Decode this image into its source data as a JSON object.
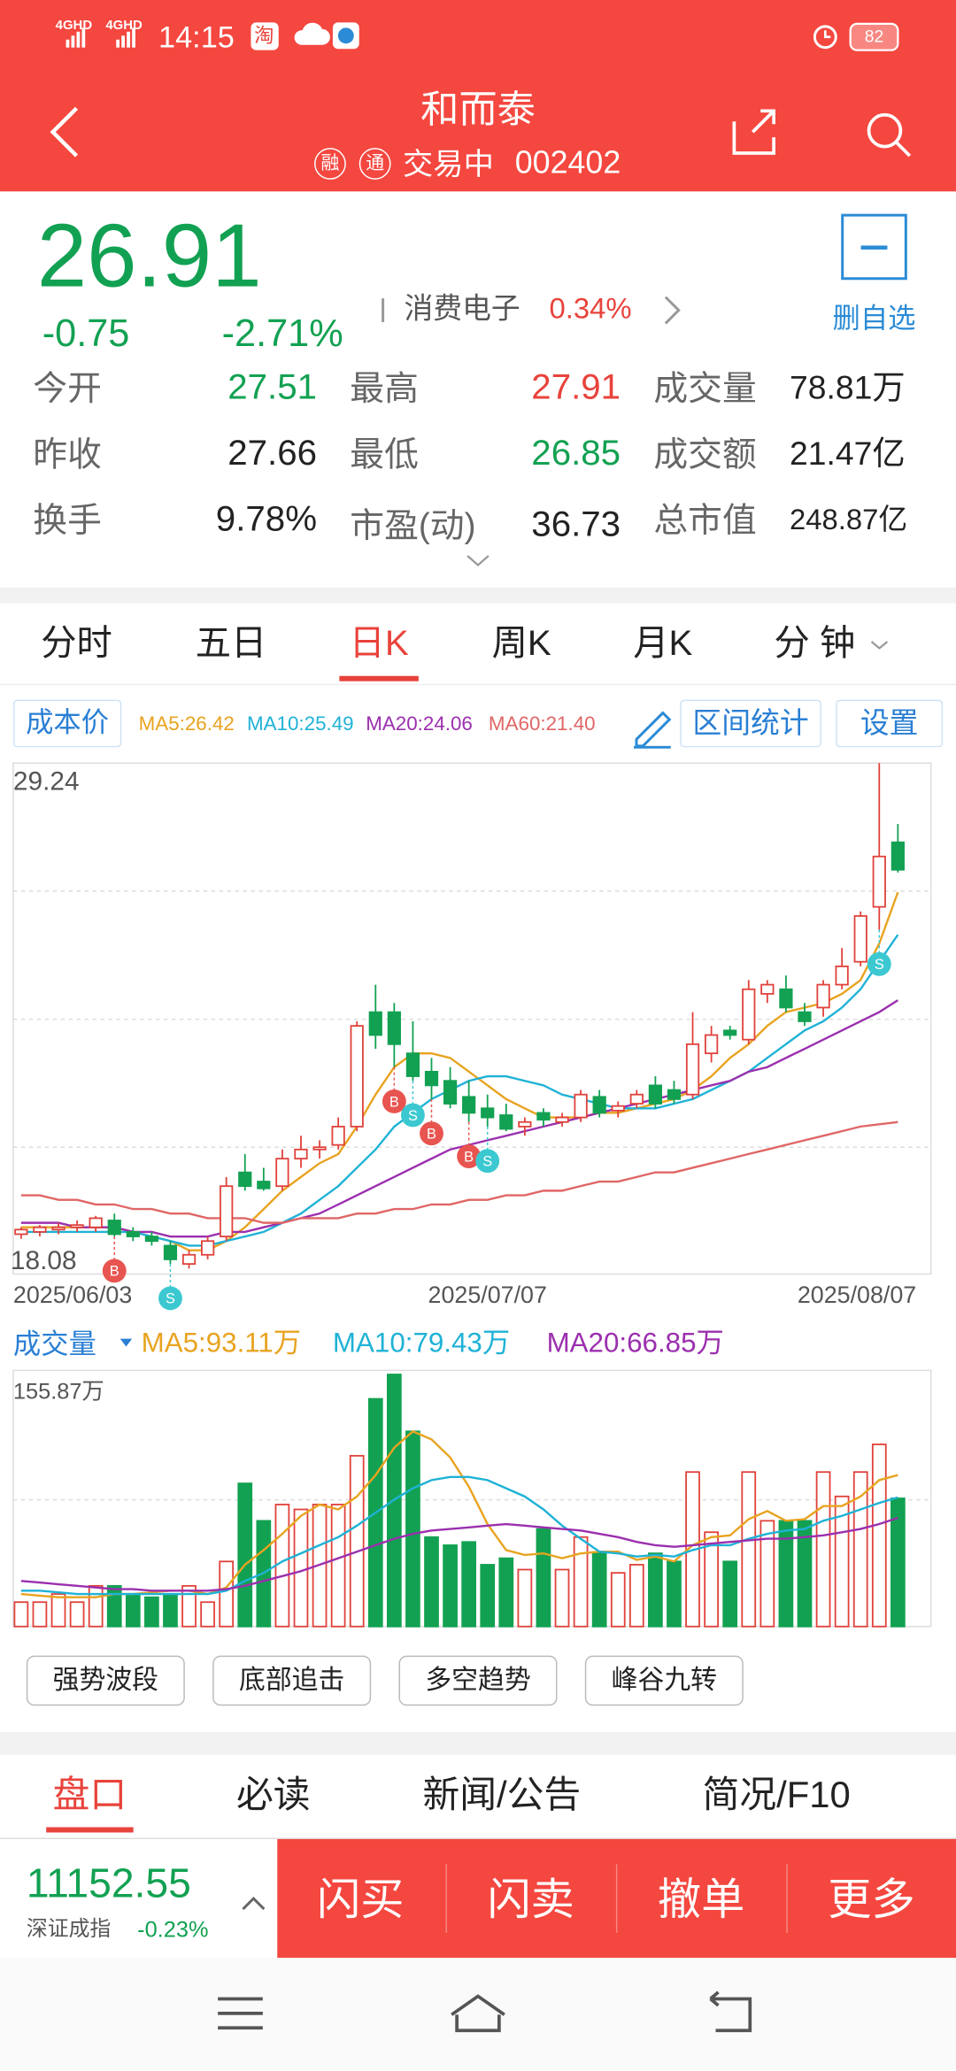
{
  "status_bar": {
    "network": [
      "4GHD",
      "4GHD"
    ],
    "time": "14:15",
    "notification_icons": [
      "淘"
    ],
    "battery": "82"
  },
  "header": {
    "title": "和而泰",
    "badges": [
      "融",
      "通"
    ],
    "status": "交易中",
    "code": "002402"
  },
  "quote": {
    "price": "26.91",
    "change": "-0.75",
    "change_pct": "-2.71%",
    "sector": "消费电子",
    "sector_change": "0.34%",
    "watchlist": "删自选"
  },
  "stats": [
    [
      {
        "label": "今开",
        "value": "27.51",
        "color": "#12a152"
      },
      {
        "label": "最高",
        "value": "27.91",
        "color": "#e8433b"
      },
      {
        "label": "成交量",
        "value": "78.81万",
        "color": "#222222"
      }
    ],
    [
      {
        "label": "昨收",
        "value": "27.66",
        "color": "#222222"
      },
      {
        "label": "最低",
        "value": "26.85",
        "color": "#12a152"
      },
      {
        "label": "成交额",
        "value": "21.47亿",
        "color": "#222222"
      }
    ],
    [
      {
        "label": "换手",
        "value": "9.78%",
        "color": "#222222"
      },
      {
        "label": "市盈(动)",
        "value": "36.73",
        "color": "#222222"
      },
      {
        "label": "总市值",
        "value": "248.87亿",
        "color": "#222222"
      }
    ]
  ],
  "tabs": [
    {
      "label": "分时"
    },
    {
      "label": "五日"
    },
    {
      "label": "日K",
      "selected": true
    },
    {
      "label": "周K"
    },
    {
      "label": "月K"
    },
    {
      "label": "分 钟"
    }
  ],
  "kline": {
    "cost_button": "成本价",
    "tools": [
      "区间统计",
      "设置"
    ],
    "ylim": [
      18.08,
      29.24
    ],
    "up_color": "#e0413a",
    "down_color": "#12a152",
    "ma": [
      {
        "label": "MA5:26.42",
        "color": "#e8a320",
        "values": [
          19.1,
          19.1,
          19.1,
          19.1,
          19.1,
          19.1,
          19.0,
          18.9,
          18.8,
          18.6,
          18.6,
          18.8,
          19.1,
          19.5,
          19.9,
          20.2,
          20.5,
          20.7,
          21.3,
          22.0,
          22.6,
          22.9,
          22.9,
          22.8,
          22.5,
          22.2,
          21.9,
          21.7,
          21.5,
          21.5,
          21.5,
          21.6,
          21.6,
          21.7,
          21.8,
          21.9,
          22.1,
          22.4,
          22.8,
          23.1,
          23.5,
          23.8,
          23.9,
          24.0,
          24.2,
          24.5,
          25.3,
          26.42
        ]
      },
      {
        "label": "MA10:25.49",
        "color": "#1fb2d6",
        "values": [
          19.0,
          19.0,
          19.0,
          19.0,
          19.0,
          19.0,
          19.0,
          18.9,
          18.8,
          18.7,
          18.7,
          18.8,
          18.9,
          19.0,
          19.2,
          19.4,
          19.7,
          20.0,
          20.4,
          20.8,
          21.3,
          21.6,
          21.9,
          22.1,
          22.3,
          22.4,
          22.4,
          22.3,
          22.2,
          22.0,
          21.9,
          21.8,
          21.7,
          21.7,
          21.7,
          21.8,
          21.9,
          22.1,
          22.3,
          22.5,
          22.8,
          23.1,
          23.4,
          23.6,
          23.9,
          24.3,
          24.9,
          25.49
        ]
      },
      {
        "label": "MA20:24.06",
        "color": "#9b2fae",
        "values": [
          19.2,
          19.2,
          19.2,
          19.1,
          19.1,
          19.1,
          19.0,
          19.0,
          18.9,
          18.9,
          18.9,
          19.0,
          19.0,
          19.1,
          19.2,
          19.3,
          19.4,
          19.6,
          19.8,
          20.0,
          20.2,
          20.4,
          20.6,
          20.8,
          20.9,
          21.0,
          21.1,
          21.2,
          21.3,
          21.4,
          21.5,
          21.6,
          21.7,
          21.8,
          21.9,
          22.0,
          22.1,
          22.2,
          22.3,
          22.5,
          22.6,
          22.8,
          23.0,
          23.2,
          23.4,
          23.6,
          23.8,
          24.06
        ]
      },
      {
        "label": "MA60:21.40",
        "color": "#e06666",
        "values": [
          19.8,
          19.8,
          19.7,
          19.7,
          19.6,
          19.6,
          19.5,
          19.5,
          19.4,
          19.4,
          19.3,
          19.3,
          19.3,
          19.2,
          19.2,
          19.3,
          19.3,
          19.3,
          19.4,
          19.4,
          19.5,
          19.5,
          19.6,
          19.6,
          19.7,
          19.7,
          19.8,
          19.8,
          19.9,
          19.9,
          20.0,
          20.1,
          20.1,
          20.2,
          20.3,
          20.3,
          20.4,
          20.5,
          20.6,
          20.7,
          20.8,
          20.9,
          21.0,
          21.1,
          21.2,
          21.3,
          21.35,
          21.4
        ]
      }
    ],
    "candles": [
      {
        "o": 18.95,
        "h": 19.1,
        "l": 18.85,
        "c": 19.05,
        "date": "2025/06/03"
      },
      {
        "o": 19.0,
        "h": 19.15,
        "l": 18.9,
        "c": 19.1
      },
      {
        "o": 19.05,
        "h": 19.2,
        "l": 18.95,
        "c": 19.1
      },
      {
        "o": 19.1,
        "h": 19.25,
        "l": 19.0,
        "c": 19.15
      },
      {
        "o": 19.1,
        "h": 19.35,
        "l": 19.0,
        "c": 19.3
      },
      {
        "o": 19.25,
        "h": 19.4,
        "l": 18.9,
        "c": 18.95,
        "signal": "B"
      },
      {
        "o": 19.0,
        "h": 19.1,
        "l": 18.8,
        "c": 18.9
      },
      {
        "o": 18.9,
        "h": 19.0,
        "l": 18.7,
        "c": 18.8
      },
      {
        "o": 18.7,
        "h": 18.8,
        "l": 18.3,
        "c": 18.4,
        "signal": "S"
      },
      {
        "o": 18.3,
        "h": 18.6,
        "l": 18.2,
        "c": 18.5
      },
      {
        "o": 18.5,
        "h": 18.9,
        "l": 18.4,
        "c": 18.8
      },
      {
        "o": 18.9,
        "h": 20.2,
        "l": 18.8,
        "c": 20.0
      },
      {
        "o": 20.3,
        "h": 20.7,
        "l": 19.9,
        "c": 20.0
      },
      {
        "o": 20.1,
        "h": 20.4,
        "l": 19.9,
        "c": 19.95
      },
      {
        "o": 20.0,
        "h": 20.8,
        "l": 19.9,
        "c": 20.6
      },
      {
        "o": 20.6,
        "h": 21.1,
        "l": 20.4,
        "c": 20.8
      },
      {
        "o": 20.8,
        "h": 21.0,
        "l": 20.6,
        "c": 20.85
      },
      {
        "o": 20.9,
        "h": 21.5,
        "l": 20.8,
        "c": 21.3
      },
      {
        "o": 21.3,
        "h": 23.6,
        "l": 21.2,
        "c": 23.5
      },
      {
        "o": 23.8,
        "h": 24.4,
        "l": 23.0,
        "c": 23.3
      },
      {
        "o": 23.8,
        "h": 24.0,
        "l": 22.6,
        "c": 23.1,
        "signal": "B"
      },
      {
        "o": 22.9,
        "h": 23.6,
        "l": 22.3,
        "c": 22.4,
        "signal": "S"
      },
      {
        "o": 22.5,
        "h": 22.8,
        "l": 21.9,
        "c": 22.2,
        "signal": "B"
      },
      {
        "o": 22.3,
        "h": 22.6,
        "l": 21.7,
        "c": 21.8
      },
      {
        "o": 21.95,
        "h": 22.3,
        "l": 21.4,
        "c": 21.6,
        "signal": "B"
      },
      {
        "o": 21.7,
        "h": 22.0,
        "l": 21.3,
        "c": 21.5,
        "signal": "S",
        "date": "2025/07/07"
      },
      {
        "o": 21.55,
        "h": 21.8,
        "l": 21.2,
        "c": 21.25
      },
      {
        "o": 21.3,
        "h": 21.5,
        "l": 21.1,
        "c": 21.4
      },
      {
        "o": 21.6,
        "h": 21.7,
        "l": 21.3,
        "c": 21.45
      },
      {
        "o": 21.4,
        "h": 21.6,
        "l": 21.3,
        "c": 21.5
      },
      {
        "o": 21.5,
        "h": 22.1,
        "l": 21.4,
        "c": 22.0
      },
      {
        "o": 21.95,
        "h": 22.1,
        "l": 21.5,
        "c": 21.6
      },
      {
        "o": 21.65,
        "h": 21.85,
        "l": 21.5,
        "c": 21.75
      },
      {
        "o": 21.8,
        "h": 22.1,
        "l": 21.7,
        "c": 22.0
      },
      {
        "o": 22.2,
        "h": 22.4,
        "l": 21.7,
        "c": 21.8
      },
      {
        "o": 22.1,
        "h": 22.3,
        "l": 21.8,
        "c": 21.9
      },
      {
        "o": 22.0,
        "h": 23.8,
        "l": 21.9,
        "c": 23.1
      },
      {
        "o": 22.9,
        "h": 23.5,
        "l": 22.7,
        "c": 23.3
      },
      {
        "o": 23.4,
        "h": 23.5,
        "l": 23.2,
        "c": 23.3
      },
      {
        "o": 23.2,
        "h": 24.5,
        "l": 23.1,
        "c": 24.3
      },
      {
        "o": 24.2,
        "h": 24.5,
        "l": 24.0,
        "c": 24.4
      },
      {
        "o": 24.3,
        "h": 24.6,
        "l": 23.8,
        "c": 23.9
      },
      {
        "o": 23.8,
        "h": 24.0,
        "l": 23.5,
        "c": 23.6
      },
      {
        "o": 23.9,
        "h": 24.5,
        "l": 23.7,
        "c": 24.4
      },
      {
        "o": 24.4,
        "h": 25.2,
        "l": 24.3,
        "c": 24.8
      },
      {
        "o": 24.9,
        "h": 26.0,
        "l": 24.8,
        "c": 25.9
      },
      {
        "o": 26.1,
        "h": 29.24,
        "l": 25.6,
        "c": 27.2,
        "signal": "S"
      },
      {
        "o": 27.51,
        "h": 27.91,
        "l": 26.85,
        "c": 26.91,
        "date": "2025/08/07"
      }
    ]
  },
  "volume": {
    "title": "成交量",
    "ylim": [
      0,
      155.87
    ],
    "yticks": [
      {
        "value": 155.87,
        "label": "155.87万"
      }
    ],
    "values": [
      15,
      15,
      20,
      15,
      25,
      25,
      20,
      18,
      20,
      25,
      15,
      40,
      88,
      65,
      75,
      72,
      75,
      75,
      105,
      140,
      155,
      120,
      55,
      50,
      52,
      38,
      42,
      35,
      60,
      35,
      55,
      45,
      33,
      38,
      45,
      40,
      95,
      58,
      40,
      95,
      65,
      65,
      65,
      95,
      80,
      95,
      112,
      78.81
    ],
    "ma": [
      {
        "label": "MA5:93.11万",
        "color": "#e8a320",
        "values": [
          20,
          19,
          18,
          18,
          18,
          20,
          20,
          21,
          22,
          22,
          20,
          24,
          38,
          47,
          57,
          68,
          75,
          72,
          80,
          93,
          110,
          120,
          115,
          104,
          86,
          63,
          47,
          44,
          45,
          42,
          45,
          46,
          46,
          41,
          43,
          40,
          50,
          55,
          56,
          66,
          71,
          65,
          66,
          74,
          74,
          80,
          90,
          93.11
        ]
      },
      {
        "label": "MA10:79.43万",
        "color": "#1fb2d6",
        "values": [
          22,
          22,
          21,
          20,
          20,
          20,
          20,
          20,
          20,
          20,
          20,
          22,
          28,
          33,
          40,
          45,
          50,
          55,
          62,
          70,
          78,
          85,
          90,
          92,
          92,
          90,
          85,
          80,
          72,
          62,
          54,
          46,
          45,
          43,
          44,
          43,
          47,
          50,
          50,
          54,
          57,
          59,
          60,
          65,
          68,
          72,
          76,
          79.43
        ]
      },
      {
        "label": "MA20:66.85万",
        "color": "#9b2fae",
        "values": [
          28,
          27,
          26,
          25,
          24,
          23,
          23,
          22,
          22,
          22,
          22,
          23,
          25,
          28,
          31,
          34,
          38,
          42,
          46,
          50,
          54,
          57,
          59,
          60,
          61,
          62,
          63,
          62,
          61,
          60,
          59,
          57,
          55,
          52,
          50,
          49,
          50,
          51,
          52,
          53,
          54,
          54,
          55,
          56,
          58,
          60,
          63,
          66.85
        ]
      }
    ]
  },
  "indicators": [
    "强势波段",
    "底部追击",
    "多空趋势",
    "峰谷九转"
  ],
  "bottom_tabs": [
    {
      "label": "盘口",
      "selected": true
    },
    {
      "label": "必读"
    },
    {
      "label": "新闻/公告"
    },
    {
      "label": "简况/F10"
    }
  ],
  "index": {
    "value": "11152.55",
    "name": "深证成指",
    "change": "-0.23%"
  },
  "actions": [
    "闪买",
    "闪卖",
    "撤单",
    "更多"
  ]
}
